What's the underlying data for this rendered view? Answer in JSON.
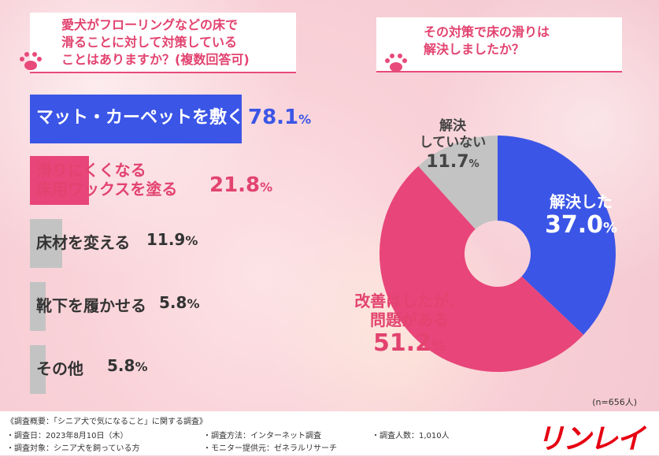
{
  "left_question": {
    "text_lines": [
      "愛犬がフローリングなどの床で",
      "滑ることに対して対策している",
      "ことはありますか？(複数回答可)"
    ]
  },
  "right_question": {
    "text_lines": [
      "その対策で床の滑りは",
      "解決しましたか？"
    ]
  },
  "colors": {
    "blue": "#3b55e6",
    "pink": "#e8457a",
    "gray": "#c3c3c3",
    "accent": "#e2436f",
    "logo": "#e60012"
  },
  "chart_data": [
    {
      "type": "bar",
      "orientation": "horizontal",
      "categories": [
        "マット・カーペットを敷く",
        "滑りにくくなる床用ワックスを塗る",
        "床材を変える",
        "靴下を履かせる",
        "その他"
      ],
      "label_lines": [
        [
          "マット・カーペットを敷く"
        ],
        [
          "滑りにくくなる",
          "床用ワックスを塗る"
        ],
        [
          "床材を変える"
        ],
        [
          "靴下を履かせる"
        ],
        [
          "その他"
        ]
      ],
      "values": [
        78.1,
        21.8,
        11.9,
        5.8,
        5.8
      ],
      "value_labels": [
        "78.1",
        "21.8",
        "11.9",
        "5.8",
        "5.8"
      ],
      "unit": "%",
      "bar_colors": [
        "#3b55e6",
        "#e8457a",
        "#c3c3c3",
        "#c3c3c3",
        "#c3c3c3"
      ]
    },
    {
      "type": "pie",
      "donut": true,
      "categories": [
        "解決した",
        "改善はしたが、問題がある",
        "解決していない"
      ],
      "label_lines": [
        [
          "解決した"
        ],
        [
          "改善はしたが、",
          "問題がある"
        ],
        [
          "解決",
          "していない"
        ]
      ],
      "values": [
        37.0,
        51.2,
        11.7
      ],
      "value_labels": [
        "37.0",
        "51.2",
        "11.7"
      ],
      "unit": "%",
      "colors": [
        "#3b55e6",
        "#e8457a",
        "#c3c3c3"
      ],
      "note": "(n=656人)"
    }
  ],
  "footer": {
    "title": "《調査概要：「シニア犬で気になること」に関する調査》",
    "date": "・調査日：2023年8月10日（木）",
    "target": "・調査対象：シニア犬を飼っている方",
    "method": "・調査方法：インターネット調査",
    "provider": "・モニター提供元：ゼネラルリサーチ",
    "count": "・調査人数：1,010人",
    "logo": "リンレイ"
  }
}
